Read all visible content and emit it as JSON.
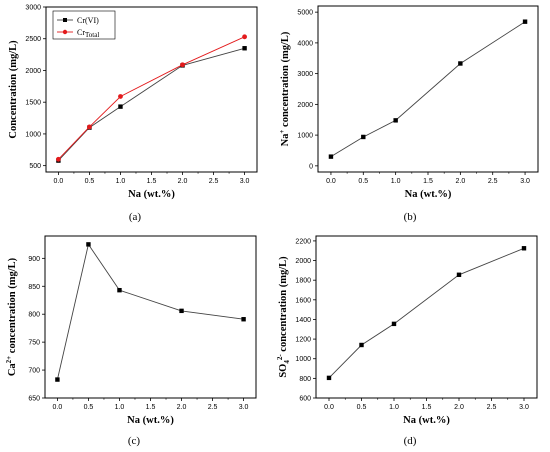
{
  "chart_data": [
    {
      "type": "line",
      "panel_label": "(a)",
      "xlabel": "Na (wt.%)",
      "ylabel": "Concentration (mg/L)",
      "x": [
        0.0,
        0.5,
        1.0,
        2.0,
        3.0
      ],
      "xlim": [
        -0.2,
        3.2
      ],
      "ylim": [
        400,
        3000
      ],
      "xticks": [
        "0.0",
        "0.5",
        "1.0",
        "1.5",
        "2.0",
        "2.5",
        "3.0"
      ],
      "yticks": [
        "500",
        "1000",
        "1500",
        "2000",
        "2500",
        "3000"
      ],
      "legend": "top-left",
      "series": [
        {
          "name": "Cr(VI)",
          "name_main": "Cr(VI)",
          "name_sub": "",
          "marker": "square",
          "color": "#000000",
          "values": [
            580,
            1100,
            1430,
            2080,
            2350
          ]
        },
        {
          "name": "CrTotal",
          "name_main": "Cr",
          "name_sub": "Total",
          "marker": "circle",
          "color": "#e31a1c",
          "values": [
            600,
            1110,
            1590,
            2090,
            2530
          ]
        }
      ]
    },
    {
      "type": "line",
      "panel_label": "(b)",
      "xlabel": "Na (wt.%)",
      "ylabel": "Na+ concentration (mg/L)",
      "ylabel_main": "Na",
      "ylabel_sup": "+",
      "ylabel_rest": " concentration (mg/L)",
      "x": [
        0.0,
        0.5,
        1.0,
        2.0,
        3.0
      ],
      "xlim": [
        -0.2,
        3.2
      ],
      "ylim": [
        -200,
        5200
      ],
      "xticks": [
        "0.0",
        "0.5",
        "1.0",
        "1.5",
        "2.0",
        "2.5",
        "3.0"
      ],
      "yticks": [
        "0",
        "1000",
        "2000",
        "3000",
        "4000",
        "5000"
      ],
      "series": [
        {
          "marker": "square",
          "color": "#000000",
          "values": [
            300,
            940,
            1480,
            3330,
            4690
          ]
        }
      ]
    },
    {
      "type": "line",
      "panel_label": "(c)",
      "xlabel": "Na (wt.%)",
      "ylabel": "Ca2+ concentration (mg/L)",
      "ylabel_main": "Ca",
      "ylabel_sup": "2+",
      "ylabel_rest": " concentration (mg/L)",
      "x": [
        0.0,
        0.5,
        1.0,
        2.0,
        3.0
      ],
      "xlim": [
        -0.2,
        3.2
      ],
      "ylim": [
        650,
        940
      ],
      "xticks": [
        "0.0",
        "0.5",
        "1.0",
        "1.5",
        "2.0",
        "2.5",
        "3.0"
      ],
      "yticks": [
        "650",
        "700",
        "750",
        "800",
        "850",
        "900"
      ],
      "series": [
        {
          "marker": "square",
          "color": "#000000",
          "values": [
            683,
            925,
            843,
            806,
            791
          ]
        }
      ]
    },
    {
      "type": "line",
      "panel_label": "(d)",
      "xlabel": "Na (wt.%)",
      "ylabel": "SO42- concentration (mg/L)",
      "ylabel_main": "SO",
      "ylabel_subscript": "4",
      "ylabel_sup": "2-",
      "ylabel_rest": " concentration (mg/L)",
      "x": [
        0.0,
        0.5,
        1.0,
        2.0,
        3.0
      ],
      "xlim": [
        -0.2,
        3.2
      ],
      "ylim": [
        600,
        2250
      ],
      "xticks": [
        "0.0",
        "0.5",
        "1.0",
        "1.5",
        "2.0",
        "2.5",
        "3.0"
      ],
      "yticks": [
        "600",
        "800",
        "1000",
        "1200",
        "1400",
        "1600",
        "1800",
        "2000",
        "2200"
      ],
      "series": [
        {
          "marker": "square",
          "color": "#000000",
          "values": [
            805,
            1140,
            1355,
            1855,
            2125
          ]
        }
      ]
    }
  ]
}
